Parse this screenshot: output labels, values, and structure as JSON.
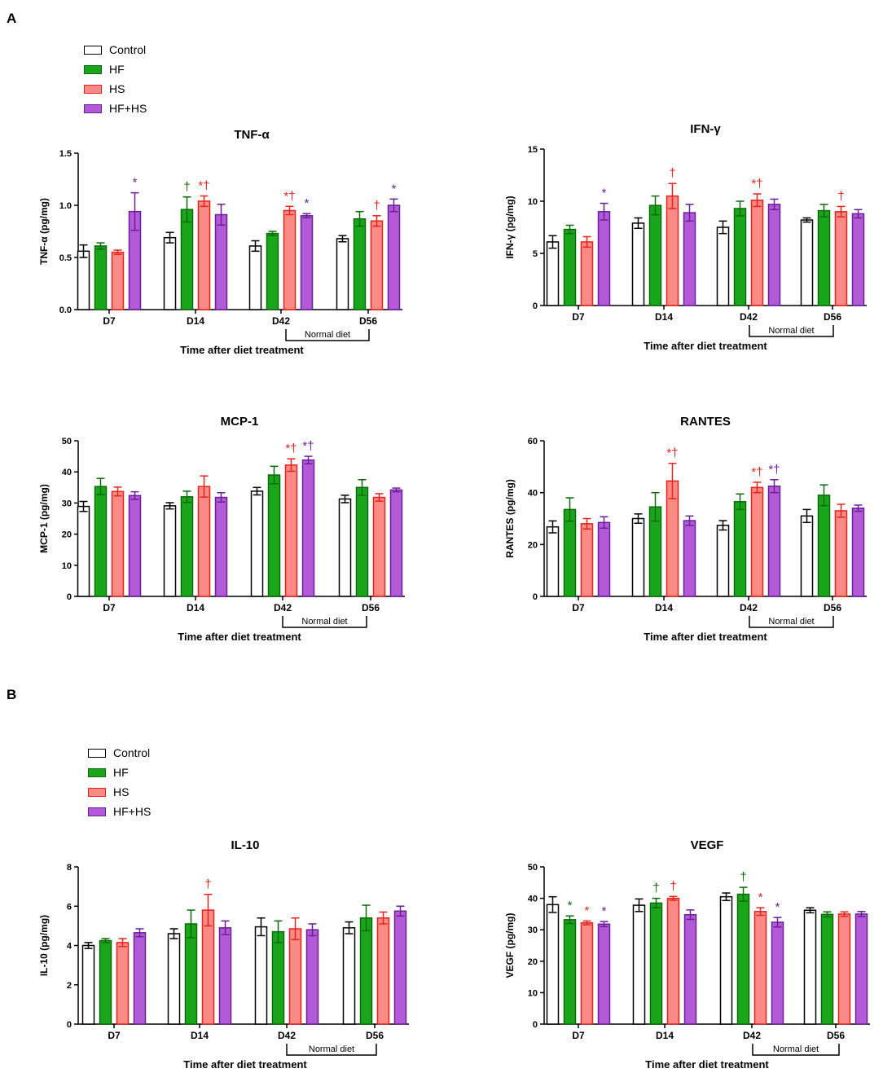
{
  "panels": [
    {
      "label": "A"
    },
    {
      "label": "B"
    }
  ],
  "legend": {
    "items": [
      {
        "label": "Control",
        "fill": "#ffffff",
        "stroke": "#000000"
      },
      {
        "label": "HF",
        "fill": "#1aa61a",
        "stroke": "#0b6b0b"
      },
      {
        "label": "HS",
        "fill": "#f98a85",
        "stroke": "#e8231b"
      },
      {
        "label": "HF+HS",
        "fill": "#b45ad8",
        "stroke": "#6a1f9a"
      }
    ]
  },
  "chart_data": [
    {
      "type": "bar",
      "title": "TNF-α",
      "ylabel": "TNF-α (pg/mg)",
      "xlabel": "Time after diet treatment",
      "bracket_label": "Normal diet",
      "categories": [
        "D7",
        "D14",
        "D42",
        "D56"
      ],
      "ylim": [
        0,
        1.5
      ],
      "yticks": [
        "0.0",
        "0.5",
        "1.0",
        "1.5"
      ],
      "series": [
        {
          "name": "Control",
          "values": [
            0.56,
            0.69,
            0.61,
            0.68
          ],
          "errors": [
            0.06,
            0.05,
            0.05,
            0.03
          ]
        },
        {
          "name": "HF",
          "values": [
            0.61,
            0.96,
            0.73,
            0.87
          ],
          "errors": [
            0.03,
            0.12,
            0.02,
            0.07
          ]
        },
        {
          "name": "HS",
          "values": [
            0.55,
            1.04,
            0.95,
            0.85
          ],
          "errors": [
            0.02,
            0.05,
            0.04,
            0.05
          ]
        },
        {
          "name": "HF+HS",
          "values": [
            0.94,
            0.91,
            0.9,
            1.0
          ],
          "errors": [
            0.18,
            0.1,
            0.02,
            0.06
          ]
        }
      ],
      "annotations": [
        {
          "category": 0,
          "series": 3,
          "text": "*"
        },
        {
          "category": 1,
          "series": 1,
          "text": "†"
        },
        {
          "category": 1,
          "series": 2,
          "text": "*†"
        },
        {
          "category": 2,
          "series": 2,
          "text": "*†"
        },
        {
          "category": 2,
          "series": 3,
          "text": "*"
        },
        {
          "category": 3,
          "series": 2,
          "text": "†"
        },
        {
          "category": 3,
          "series": 3,
          "text": "*"
        }
      ]
    },
    {
      "type": "bar",
      "title": "IFN-γ",
      "ylabel": "IFN-γ (pg/mg)",
      "xlabel": "Time after diet treatment",
      "bracket_label": "Normal diet",
      "categories": [
        "D7",
        "D14",
        "D42",
        "D56"
      ],
      "ylim": [
        0,
        15
      ],
      "yticks": [
        "0",
        "5",
        "10",
        "15"
      ],
      "series": [
        {
          "name": "Control",
          "values": [
            6.1,
            7.9,
            7.5,
            8.2
          ],
          "errors": [
            0.6,
            0.5,
            0.6,
            0.2
          ]
        },
        {
          "name": "HF",
          "values": [
            7.3,
            9.6,
            9.3,
            9.1
          ],
          "errors": [
            0.4,
            0.9,
            0.7,
            0.6
          ]
        },
        {
          "name": "HS",
          "values": [
            6.1,
            10.5,
            10.1,
            9.0
          ],
          "errors": [
            0.5,
            1.2,
            0.6,
            0.5
          ]
        },
        {
          "name": "HF+HS",
          "values": [
            9.0,
            8.9,
            9.7,
            8.8
          ],
          "errors": [
            0.8,
            0.8,
            0.5,
            0.4
          ]
        }
      ],
      "annotations": [
        {
          "category": 0,
          "series": 3,
          "text": "*"
        },
        {
          "category": 1,
          "series": 2,
          "text": "†"
        },
        {
          "category": 2,
          "series": 2,
          "text": "*†"
        },
        {
          "category": 3,
          "series": 2,
          "text": "†"
        }
      ]
    },
    {
      "type": "bar",
      "title": "MCP-1",
      "ylabel": "MCP-1 (pg/mg)",
      "xlabel": "Time after diet treatment",
      "bracket_label": "Normal diet",
      "categories": [
        "D7",
        "D14",
        "D42",
        "D56"
      ],
      "ylim": [
        0,
        50
      ],
      "yticks": [
        "0",
        "10",
        "20",
        "30",
        "40",
        "50"
      ],
      "series": [
        {
          "name": "Control",
          "values": [
            28.9,
            29.1,
            33.8,
            31.3
          ],
          "errors": [
            1.6,
            1.0,
            1.2,
            1.2
          ]
        },
        {
          "name": "HF",
          "values": [
            35.3,
            32.0,
            39.0,
            35.0
          ],
          "errors": [
            2.6,
            1.8,
            2.8,
            2.5
          ]
        },
        {
          "name": "HS",
          "values": [
            33.7,
            35.3,
            42.2,
            31.8
          ],
          "errors": [
            1.4,
            3.4,
            2.0,
            1.2
          ]
        },
        {
          "name": "HF+HS",
          "values": [
            32.4,
            31.8,
            43.8,
            34.2
          ],
          "errors": [
            1.2,
            1.5,
            1.2,
            0.6
          ]
        }
      ],
      "annotations": [
        {
          "category": 2,
          "series": 2,
          "text": "*†"
        },
        {
          "category": 2,
          "series": 3,
          "text": "*†"
        }
      ]
    },
    {
      "type": "bar",
      "title": "RANTES",
      "ylabel": "RANTES (pg/mg)",
      "xlabel": "Time after diet treatment",
      "bracket_label": "Normal diet",
      "categories": [
        "D7",
        "D14",
        "D42",
        "D56"
      ],
      "ylim": [
        0,
        60
      ],
      "yticks": [
        "0",
        "20",
        "40",
        "60"
      ],
      "series": [
        {
          "name": "Control",
          "values": [
            26.8,
            30.0,
            27.4,
            31.0
          ],
          "errors": [
            2.3,
            1.8,
            1.8,
            2.5
          ]
        },
        {
          "name": "HF",
          "values": [
            33.5,
            34.5,
            36.5,
            39.0
          ],
          "errors": [
            4.5,
            5.5,
            3.0,
            4.0
          ]
        },
        {
          "name": "HS",
          "values": [
            28.0,
            44.5,
            42.0,
            33.0
          ],
          "errors": [
            2.0,
            6.8,
            2.0,
            2.5
          ]
        },
        {
          "name": "HF+HS",
          "values": [
            28.5,
            29.2,
            42.5,
            34.0
          ],
          "errors": [
            2.2,
            1.8,
            2.5,
            1.2
          ]
        }
      ],
      "annotations": [
        {
          "category": 1,
          "series": 2,
          "text": "*†"
        },
        {
          "category": 2,
          "series": 2,
          "text": "*†"
        },
        {
          "category": 2,
          "series": 3,
          "text": "*†"
        }
      ]
    },
    {
      "type": "bar",
      "title": "IL-10",
      "ylabel": "IL-10 (pg/mg)",
      "xlabel": "Time after diet treatment",
      "bracket_label": "Normal diet",
      "categories": [
        "D7",
        "D14",
        "D42",
        "D56"
      ],
      "ylim": [
        0,
        8
      ],
      "yticks": [
        "0",
        "2",
        "4",
        "6",
        "8"
      ],
      "series": [
        {
          "name": "Control",
          "values": [
            4.0,
            4.6,
            4.95,
            4.9
          ],
          "errors": [
            0.15,
            0.25,
            0.45,
            0.3
          ]
        },
        {
          "name": "HF",
          "values": [
            4.25,
            5.1,
            4.7,
            5.4
          ],
          "errors": [
            0.1,
            0.7,
            0.55,
            0.65
          ]
        },
        {
          "name": "HS",
          "values": [
            4.15,
            5.8,
            4.85,
            5.4
          ],
          "errors": [
            0.2,
            0.8,
            0.55,
            0.3
          ]
        },
        {
          "name": "HF+HS",
          "values": [
            4.65,
            4.9,
            4.8,
            5.75
          ],
          "errors": [
            0.2,
            0.35,
            0.3,
            0.25
          ]
        }
      ],
      "annotations": [
        {
          "category": 1,
          "series": 2,
          "text": "†"
        }
      ]
    },
    {
      "type": "bar",
      "title": "VEGF",
      "ylabel": "VEGF (pg/mg)",
      "xlabel": "Time after diet treatment",
      "bracket_label": "Normal diet",
      "categories": [
        "D7",
        "D14",
        "D42",
        "D56"
      ],
      "ylim": [
        0,
        50
      ],
      "yticks": [
        "0",
        "10",
        "20",
        "30",
        "40",
        "50"
      ],
      "series": [
        {
          "name": "Control",
          "values": [
            38.0,
            37.8,
            40.5,
            36.2
          ],
          "errors": [
            2.5,
            2.0,
            1.2,
            0.8
          ]
        },
        {
          "name": "HF",
          "values": [
            33.2,
            38.5,
            41.3,
            34.9
          ],
          "errors": [
            1.2,
            1.5,
            2.2,
            0.8
          ]
        },
        {
          "name": "HS",
          "values": [
            32.2,
            40.0,
            35.8,
            35.0
          ],
          "errors": [
            0.6,
            0.6,
            1.2,
            0.7
          ]
        },
        {
          "name": "HF+HS",
          "values": [
            31.8,
            34.8,
            32.4,
            35.0
          ],
          "errors": [
            0.8,
            1.5,
            1.5,
            0.8
          ]
        }
      ],
      "annotations": [
        {
          "category": 0,
          "series": 1,
          "text": "*"
        },
        {
          "category": 0,
          "series": 2,
          "text": "*"
        },
        {
          "category": 0,
          "series": 3,
          "text": "*"
        },
        {
          "category": 1,
          "series": 1,
          "text": "†"
        },
        {
          "category": 1,
          "series": 2,
          "text": "†"
        },
        {
          "category": 2,
          "series": 1,
          "text": "†"
        },
        {
          "category": 2,
          "series": 2,
          "text": "*"
        },
        {
          "category": 2,
          "series": 3,
          "text": "*"
        }
      ]
    }
  ]
}
